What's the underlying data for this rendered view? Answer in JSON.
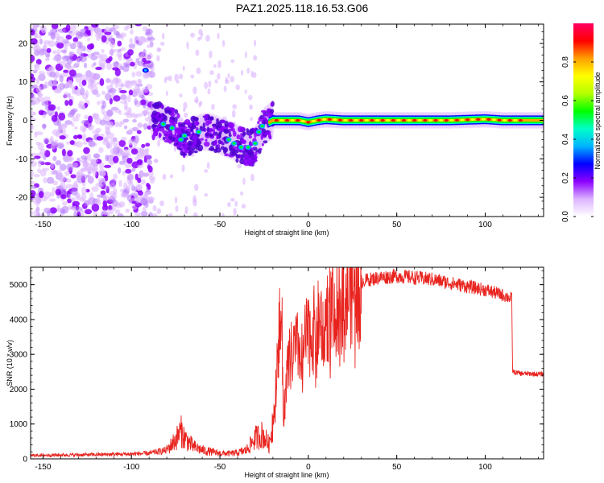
{
  "title": "PAZ1.2025.118.16.53.G06",
  "chart_data": [
    {
      "type": "heatmap",
      "xlabel": "Height of straight line (km)",
      "ylabel": "Frequency (Hz)",
      "xlim": [
        -157,
        133
      ],
      "ylim": [
        -25,
        25
      ],
      "xticks": [
        -150,
        -100,
        -50,
        0,
        50,
        100
      ],
      "yticks": [
        -20,
        -10,
        0,
        10,
        20
      ],
      "colorbar": {
        "label": "Normalized spectral amplitude",
        "range": [
          0,
          1
        ],
        "ticks": [
          0.0,
          0.2,
          0.4,
          0.6,
          0.8
        ],
        "tick_labels": [
          "0.0",
          "0.2",
          "0.4",
          "0.6",
          "0.8"
        ],
        "colors": [
          "#ffffff",
          "#dcb4ff",
          "#8c00ff",
          "#0000ff",
          "#00b4ff",
          "#00ffc8",
          "#00ff00",
          "#b4ff00",
          "#ffff00",
          "#ffa000",
          "#ff0000",
          "#ff0064"
        ]
      },
      "ridge": {
        "x": [
          -85,
          -80,
          -75,
          -70,
          -65,
          -60,
          -55,
          -50,
          -45,
          -40,
          -35,
          -30,
          -27,
          -24,
          -20,
          -15,
          -10,
          -5,
          0,
          5,
          10,
          20,
          40,
          60,
          80,
          100,
          110,
          120,
          133
        ],
        "y": [
          0,
          -1,
          -2,
          -5,
          -4,
          -3,
          -3,
          -4,
          -5,
          -6,
          -7,
          -7,
          -3,
          -1,
          0,
          0,
          0,
          0,
          -0.5,
          0,
          0.3,
          0,
          0,
          0,
          0,
          0.3,
          0,
          0,
          0
        ]
      },
      "scatter_region_x": [
        -157,
        -88
      ],
      "grid": false
    },
    {
      "type": "line",
      "xlabel": "Height of straight line (km)",
      "ylabel": "SNR (10 * v/v)",
      "xlim": [
        -157,
        133
      ],
      "ylim": [
        0,
        5500
      ],
      "xticks": [
        -150,
        -100,
        -50,
        0,
        50,
        100
      ],
      "yticks": [
        0,
        1000,
        2000,
        3000,
        4000,
        5000
      ],
      "color": "#e8231e",
      "x": [
        -157,
        -140,
        -120,
        -100,
        -90,
        -80,
        -75,
        -72,
        -70,
        -65,
        -60,
        -55,
        -50,
        -45,
        -40,
        -35,
        -30,
        -26,
        -22,
        -19,
        -17,
        -15,
        -14,
        -12,
        -10,
        -8,
        -5,
        0,
        5,
        10,
        15,
        20,
        25,
        30,
        40,
        50,
        60,
        70,
        80,
        90,
        100,
        110,
        115,
        115.5,
        120,
        133
      ],
      "y": [
        100,
        110,
        120,
        140,
        160,
        250,
        550,
        800,
        600,
        350,
        250,
        200,
        160,
        150,
        170,
        250,
        600,
        700,
        400,
        1500,
        3500,
        4000,
        1200,
        2500,
        2900,
        3100,
        3200,
        3500,
        3800,
        4100,
        4400,
        4600,
        4900,
        5100,
        5200,
        5250,
        5200,
        5150,
        5050,
        4950,
        4850,
        4700,
        4600,
        2500,
        2450,
        2430
      ],
      "grid": false
    }
  ]
}
